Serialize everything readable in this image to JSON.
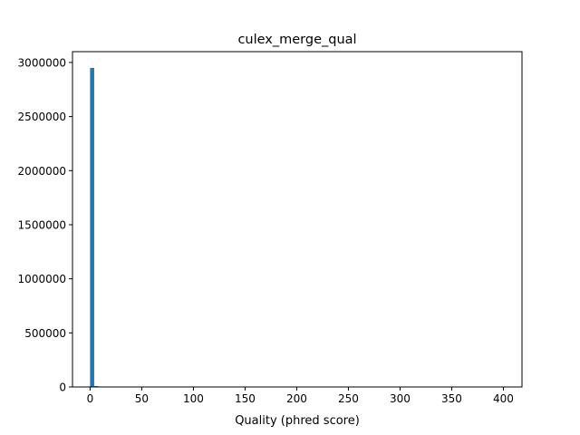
{
  "chart_data": {
    "type": "bar",
    "title": "culex_merge_qual",
    "xlabel": "Quality (phred score)",
    "ylabel": "",
    "xlim": [
      -17,
      418
    ],
    "ylim": [
      0,
      3100000
    ],
    "xticks": [
      0,
      50,
      100,
      150,
      200,
      250,
      300,
      350,
      400
    ],
    "yticks": [
      0,
      500000,
      1000000,
      1500000,
      2000000,
      2500000,
      3000000
    ],
    "bins": [
      {
        "x0": 0,
        "x1": 4,
        "value": 2950000
      },
      {
        "x0": 4,
        "x1": 8,
        "value": 8000
      }
    ],
    "grid": false,
    "bar_color": "#1f77b4"
  }
}
